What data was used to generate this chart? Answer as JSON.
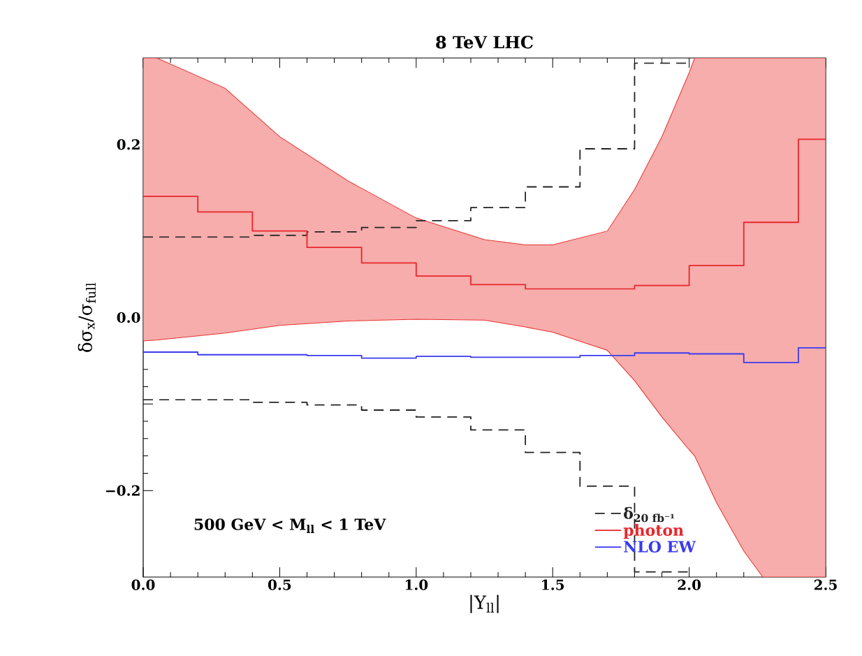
{
  "chart_data": {
    "type": "step",
    "title": "8 TeV LHC",
    "xlabel": "|Y$_{ll}$|",
    "ylabel": "δσ$_{x}$/σ$_{full}$",
    "annotations": [
      "500 GeV < M$_{ll}$ < 1 TeV"
    ],
    "xlim": [
      0,
      2.5
    ],
    "ylim": [
      -0.3,
      0.3
    ],
    "xticks": [
      {
        "value": 0,
        "label": "0.0"
      },
      {
        "value": 0.5,
        "label": "0.5"
      },
      {
        "value": 1,
        "label": "1.0"
      },
      {
        "value": 1.5,
        "label": "1.5"
      },
      {
        "value": 2,
        "label": "2.0"
      },
      {
        "value": 2.5,
        "label": "2.5"
      }
    ],
    "yticks": [
      {
        "value": -0.2,
        "label": "−0.2"
      },
      {
        "value": -0.1,
        "label": null
      },
      {
        "value": 0,
        "label": "0.0"
      },
      {
        "value": 0.1,
        "label": null
      },
      {
        "value": 0.2,
        "label": "0.2"
      }
    ],
    "legend": "bottom right",
    "grid": false,
    "series": [
      {
        "type": "area",
        "color": "#e8322f",
        "values": [
          null,
          null,
          null,
          null,
          null,
          null,
          null,
          null,
          null,
          null,
          null,
          null,
          null,
          null,
          null,
          null,
          null,
          null
        ],
        "x": [
          0,
          0.05,
          0.3,
          0.5,
          0.75,
          1.0,
          1.25,
          1.4,
          1.5,
          1.7,
          1.8,
          1.9,
          2.0,
          2.02,
          2.1,
          2.2,
          2.27,
          2.5
        ],
        "upper": [
          0.3,
          0.3,
          0.265,
          0.209,
          0.158,
          0.115,
          0.09,
          0.084,
          0.084,
          0.1,
          0.148,
          0.209,
          0.283,
          0.3,
          0.3,
          0.3,
          0.3,
          0.3
        ],
        "lower": [
          -0.027,
          -0.026,
          -0.018,
          -0.009,
          -0.004,
          -0.002,
          -0.003,
          -0.011,
          -0.017,
          -0.038,
          -0.073,
          -0.115,
          -0.153,
          -0.16,
          -0.214,
          -0.27,
          -0.3,
          -0.3
        ]
      },
      {
        "name": "δ$_{20 fb⁻¹}$",
        "color": "#222222",
        "line_style": "dashed",
        "x": [
          0,
          0.2,
          0.4,
          0.6,
          0.8,
          1.0,
          1.2,
          1.4,
          1.6,
          1.8,
          2.0
        ],
        "values": [
          0.093,
          0.093,
          0.095,
          0.099,
          0.104,
          0.112,
          0.127,
          0.151,
          0.195,
          0.294,
          0.294
        ]
      },
      {
        "color": "#222222",
        "line_style": "dashed",
        "x": [
          0,
          0.2,
          0.4,
          0.6,
          0.8,
          1.0,
          1.2,
          1.4,
          1.6,
          1.8,
          2.0
        ],
        "values": [
          -0.095,
          -0.095,
          -0.098,
          -0.101,
          -0.107,
          -0.115,
          -0.13,
          -0.156,
          -0.195,
          -0.294,
          -0.294
        ]
      },
      {
        "name": "photon",
        "color": "#e8262a",
        "line_style": "solid",
        "x": [
          0,
          0.2,
          0.4,
          0.6,
          0.8,
          1.0,
          1.2,
          1.4,
          1.6,
          1.8,
          2.0,
          2.2,
          2.4,
          2.5
        ],
        "values": [
          0.14,
          0.122,
          0.1,
          0.081,
          0.063,
          0.048,
          0.038,
          0.033,
          0.033,
          0.037,
          0.06,
          0.11,
          0.206,
          0.206
        ]
      },
      {
        "name": "NLO EW",
        "color": "#3a3af0",
        "line_style": "solid",
        "x": [
          0,
          0.2,
          0.4,
          0.6,
          0.8,
          1.0,
          1.2,
          1.4,
          1.6,
          1.8,
          2.0,
          2.2,
          2.4,
          2.5
        ],
        "values": [
          -0.04,
          -0.043,
          -0.043,
          -0.044,
          -0.047,
          -0.045,
          -0.046,
          -0.046,
          -0.044,
          -0.041,
          -0.042,
          -0.052,
          -0.035,
          -0.035
        ]
      }
    ]
  }
}
